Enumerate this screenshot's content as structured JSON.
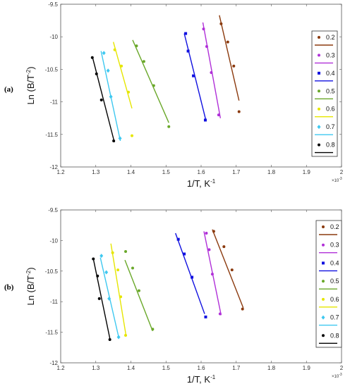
{
  "chart_data": [
    {
      "type": "scatter",
      "panel": "(a)",
      "xlabel": "1/T, K",
      "xlabel_sup": "-1",
      "ylabel": "Ln (B/T",
      "ylabel_sup": "-2",
      "ylabel_close": ")",
      "x_exponent": "×10",
      "x_exponent_sup": "-3",
      "xlim": [
        1.2,
        2.0
      ],
      "ylim": [
        -12,
        -9.5
      ],
      "xticks": [
        "1.2",
        "1.3",
        "1.4",
        "1.5",
        "1.6",
        "1.7",
        "1.8",
        "1.9",
        "2"
      ],
      "yticks": [
        "-9.5",
        "-10",
        "-10.5",
        "-11",
        "-11.5",
        "-12"
      ],
      "grid": false,
      "legend_position": "right",
      "series": [
        {
          "name": "0.2",
          "color": "#8b3a0e",
          "marker": "circle",
          "points": [
            [
              1.657,
              -9.8
            ],
            [
              1.676,
              -10.08
            ],
            [
              1.693,
              -10.45
            ],
            [
              1.708,
              -11.15
            ]
          ],
          "fit": [
            [
              1.652,
              -9.67
            ],
            [
              1.708,
              -10.98
            ]
          ]
        },
        {
          "name": "0.3",
          "color": "#b030d8",
          "marker": "circle",
          "points": [
            [
              1.607,
              -9.88
            ],
            [
              1.616,
              -10.15
            ],
            [
              1.629,
              -10.55
            ],
            [
              1.65,
              -11.2
            ]
          ],
          "fit": [
            [
              1.605,
              -9.78
            ],
            [
              1.655,
              -11.25
            ]
          ]
        },
        {
          "name": "0.4",
          "color": "#1010e0",
          "marker": "square",
          "points": [
            [
              1.556,
              -9.95
            ],
            [
              1.563,
              -10.22
            ],
            [
              1.578,
              -10.6
            ],
            [
              1.612,
              -11.28
            ]
          ],
          "fit": [
            [
              1.552,
              -9.95
            ],
            [
              1.613,
              -11.27
            ]
          ]
        },
        {
          "name": "0.5",
          "color": "#6aa82a",
          "marker": "circle",
          "points": [
            [
              1.416,
              -10.14
            ],
            [
              1.437,
              -10.38
            ],
            [
              1.465,
              -10.75
            ],
            [
              1.508,
              -11.38
            ]
          ],
          "fit": [
            [
              1.405,
              -10.05
            ],
            [
              1.508,
              -11.32
            ]
          ]
        },
        {
          "name": "0.6",
          "color": "#e6e600",
          "marker": "circle",
          "points": [
            [
              1.354,
              -10.2
            ],
            [
              1.373,
              -10.45
            ],
            [
              1.393,
              -10.85
            ],
            [
              1.403,
              -11.52
            ]
          ],
          "fit": [
            [
              1.35,
              -10.08
            ],
            [
              1.403,
              -11.1
            ]
          ]
        },
        {
          "name": "0.7",
          "color": "#3ec8f0",
          "marker": "diamond",
          "points": [
            [
              1.323,
              -10.25
            ],
            [
              1.335,
              -10.52
            ],
            [
              1.343,
              -10.92
            ],
            [
              1.369,
              -11.56
            ]
          ],
          "fit": [
            [
              1.315,
              -10.22
            ],
            [
              1.37,
              -11.6
            ]
          ]
        },
        {
          "name": "0.8",
          "color": "#000000",
          "marker": "circle",
          "points": [
            [
              1.29,
              -10.32
            ],
            [
              1.302,
              -10.57
            ],
            [
              1.316,
              -10.97
            ],
            [
              1.351,
              -11.6
            ]
          ],
          "fit": [
            [
              1.29,
              -10.3
            ],
            [
              1.353,
              -11.62
            ]
          ]
        }
      ]
    },
    {
      "type": "scatter",
      "panel": "(b)",
      "xlabel": "1/T, K",
      "xlabel_sup": "-1",
      "ylabel": "Ln (B/T",
      "ylabel_sup": "-2",
      "ylabel_close": ")",
      "x_exponent": "×10",
      "x_exponent_sup": "-3",
      "xlim": [
        1.2,
        2.0
      ],
      "ylim": [
        -12,
        -9.5
      ],
      "xticks": [
        "1.2",
        "1.3",
        "1.4",
        "1.5",
        "1.6",
        "1.7",
        "1.8",
        "1.9",
        "2"
      ],
      "yticks": [
        "-9.5",
        "-10",
        "-10.5",
        "-11",
        "-11.5",
        "-12"
      ],
      "grid": false,
      "legend_position": "right",
      "series": [
        {
          "name": "0.2",
          "color": "#8b3a0e",
          "marker": "circle",
          "points": [
            [
              1.636,
              -9.85
            ],
            [
              1.665,
              -10.1
            ],
            [
              1.688,
              -10.48
            ],
            [
              1.718,
              -11.12
            ]
          ],
          "fit": [
            [
              1.632,
              -9.82
            ],
            [
              1.72,
              -11.1
            ]
          ]
        },
        {
          "name": "0.3",
          "color": "#b030d8",
          "marker": "circle",
          "points": [
            [
              1.615,
              -9.88
            ],
            [
              1.623,
              -10.15
            ],
            [
              1.632,
              -10.55
            ],
            [
              1.654,
              -11.2
            ]
          ],
          "fit": [
            [
              1.608,
              -9.85
            ],
            [
              1.657,
              -11.22
            ]
          ]
        },
        {
          "name": "0.4",
          "color": "#1010e0",
          "marker": "square",
          "points": [
            [
              1.535,
              -9.98
            ],
            [
              1.552,
              -10.22
            ],
            [
              1.574,
              -10.6
            ],
            [
              1.613,
              -11.25
            ]
          ],
          "fit": [
            [
              1.527,
              -9.88
            ],
            [
              1.61,
              -11.2
            ]
          ]
        },
        {
          "name": "0.5",
          "color": "#6aa82a",
          "marker": "circle",
          "points": [
            [
              1.385,
              -10.18
            ],
            [
              1.405,
              -10.45
            ],
            [
              1.423,
              -10.82
            ],
            [
              1.462,
              -11.45
            ]
          ],
          "fit": [
            [
              1.383,
              -10.32
            ],
            [
              1.462,
              -11.48
            ]
          ]
        },
        {
          "name": "0.6",
          "color": "#e6e600",
          "marker": "circle",
          "points": [
            [
              1.348,
              -10.2
            ],
            [
              1.363,
              -10.48
            ],
            [
              1.371,
              -10.92
            ],
            [
              1.385,
              -11.55
            ]
          ],
          "fit": [
            [
              1.343,
              -10.05
            ],
            [
              1.386,
              -11.55
            ]
          ]
        },
        {
          "name": "0.7",
          "color": "#3ec8f0",
          "marker": "diamond",
          "points": [
            [
              1.316,
              -10.25
            ],
            [
              1.33,
              -10.52
            ],
            [
              1.338,
              -10.95
            ],
            [
              1.365,
              -11.58
            ]
          ],
          "fit": [
            [
              1.313,
              -10.28
            ],
            [
              1.366,
              -11.6
            ]
          ]
        },
        {
          "name": "0.8",
          "color": "#000000",
          "marker": "circle",
          "points": [
            [
              1.293,
              -10.3
            ],
            [
              1.305,
              -10.58
            ],
            [
              1.31,
              -10.95
            ],
            [
              1.34,
              -11.62
            ]
          ],
          "fit": [
            [
              1.293,
              -10.3
            ],
            [
              1.34,
              -11.6
            ]
          ]
        }
      ]
    }
  ]
}
